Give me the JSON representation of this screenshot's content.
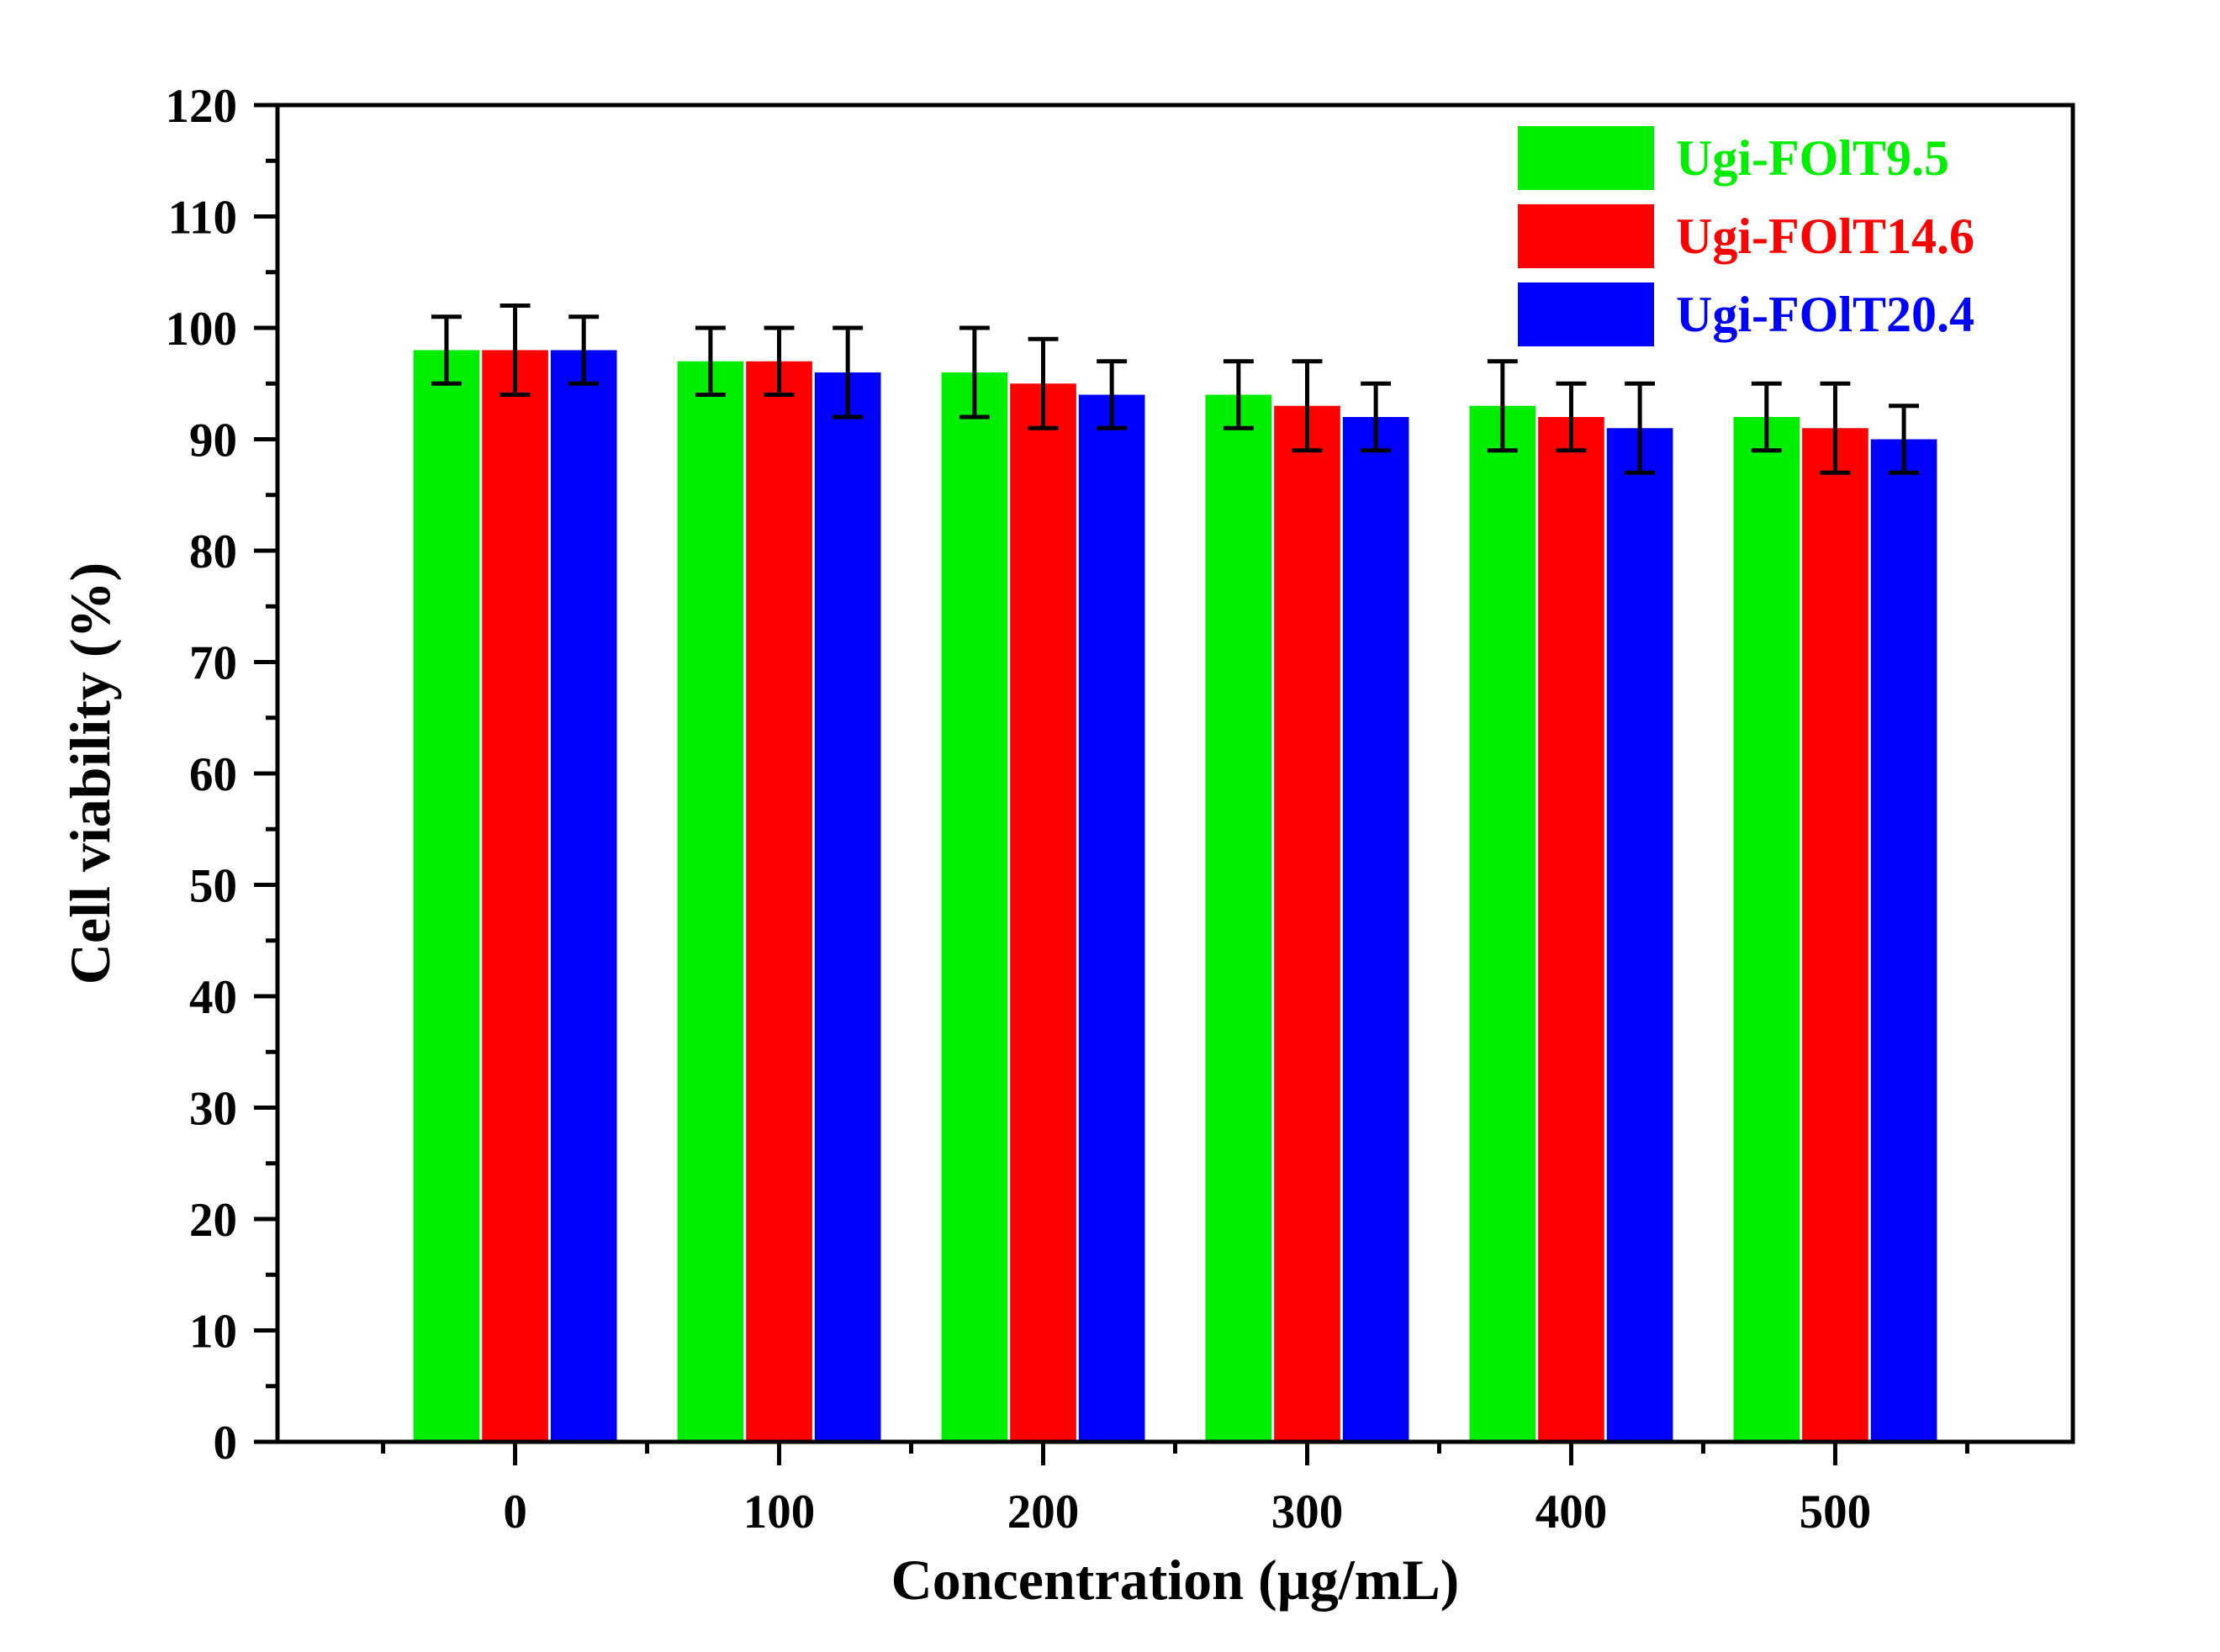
{
  "chart_data": {
    "type": "bar",
    "title": "",
    "xlabel": "Concentration (µg/mL)",
    "ylabel": "Cell viability (%)",
    "categories": [
      "0",
      "100",
      "200",
      "300",
      "400",
      "500"
    ],
    "ylim": [
      0,
      120
    ],
    "yticks": [
      "0",
      "10",
      "20",
      "30",
      "40",
      "50",
      "60",
      "70",
      "80",
      "90",
      "100",
      "110",
      "120"
    ],
    "legend_position": "top-right",
    "series": [
      {
        "name": "Ugi-FOlT9.5",
        "color": "#00ee00",
        "values": [
          98,
          97,
          96,
          94,
          93,
          92
        ],
        "errors": [
          3,
          3,
          4,
          3,
          4,
          3
        ]
      },
      {
        "name": "Ugi-FOlT14.6",
        "color": "#ff0000",
        "values": [
          98,
          97,
          95,
          93,
          92,
          91
        ],
        "errors": [
          4,
          3,
          4,
          4,
          3,
          4
        ]
      },
      {
        "name": "Ugi-FOlT20.4",
        "color": "#0000ff",
        "values": [
          98,
          96,
          94,
          92,
          91,
          90
        ],
        "errors": [
          3,
          4,
          3,
          3,
          4,
          3
        ]
      }
    ]
  }
}
